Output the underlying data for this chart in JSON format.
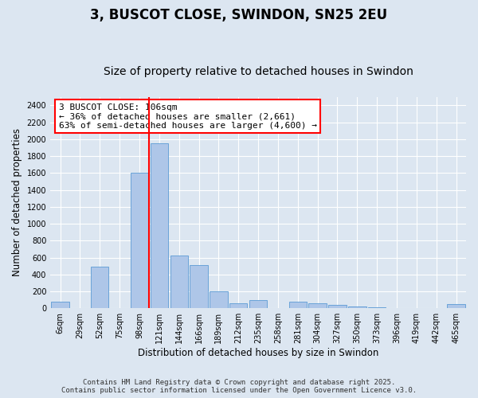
{
  "title": "3, BUSCOT CLOSE, SWINDON, SN25 2EU",
  "subtitle": "Size of property relative to detached houses in Swindon",
  "xlabel": "Distribution of detached houses by size in Swindon",
  "ylabel": "Number of detached properties",
  "categories": [
    "6sqm",
    "29sqm",
    "52sqm",
    "75sqm",
    "98sqm",
    "121sqm",
    "144sqm",
    "166sqm",
    "189sqm",
    "212sqm",
    "235sqm",
    "258sqm",
    "281sqm",
    "304sqm",
    "327sqm",
    "350sqm",
    "373sqm",
    "396sqm",
    "419sqm",
    "442sqm",
    "465sqm"
  ],
  "values": [
    80,
    5,
    490,
    5,
    1600,
    1950,
    620,
    510,
    200,
    60,
    95,
    5,
    80,
    55,
    40,
    25,
    10,
    5,
    5,
    5,
    50
  ],
  "bar_color": "#aec6e8",
  "bar_edge_color": "#5b9bd5",
  "vline_color": "red",
  "annotation_text": "3 BUSCOT CLOSE: 106sqm\n← 36% of detached houses are smaller (2,661)\n63% of semi-detached houses are larger (4,600) →",
  "annotation_box_color": "white",
  "annotation_box_edgecolor": "red",
  "ylim": [
    0,
    2500
  ],
  "yticks": [
    0,
    200,
    400,
    600,
    800,
    1000,
    1200,
    1400,
    1600,
    1800,
    2000,
    2200,
    2400
  ],
  "bg_color": "#dce6f1",
  "plot_bg_color": "#dce6f1",
  "grid_color": "white",
  "footer": "Contains HM Land Registry data © Crown copyright and database right 2025.\nContains public sector information licensed under the Open Government Licence v3.0.",
  "title_fontsize": 12,
  "subtitle_fontsize": 10,
  "label_fontsize": 8.5,
  "tick_fontsize": 7,
  "footer_fontsize": 6.5,
  "vline_pos": 4.5
}
